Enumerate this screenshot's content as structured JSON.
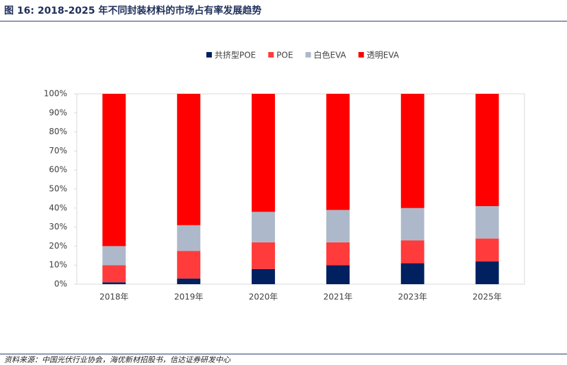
{
  "chart_data": {
    "type": "stacked_bar",
    "title": "图 16:  2018-2025 年不同封装材料的市场占有率发展趋势",
    "source": "资料来源：中国光伏行业协会，海优新材招股书，信达证券研发中心",
    "categories": [
      "2018年",
      "2019年",
      "2020年",
      "2021年",
      "2023年",
      "2025年"
    ],
    "series": [
      {
        "name": "共挤型POE",
        "color": "#002060",
        "values": [
          1,
          3,
          8,
          10,
          11,
          12
        ]
      },
      {
        "name": "POE",
        "color": "#ff3b3b",
        "values": [
          9,
          14.5,
          14,
          12,
          12,
          12
        ]
      },
      {
        "name": "白色EVA",
        "color": "#adb9ca",
        "values": [
          10,
          13.5,
          16,
          17,
          17,
          17
        ]
      },
      {
        "name": "透明EVA",
        "color": "#ff0000",
        "values": [
          80,
          69,
          62,
          61,
          60,
          59
        ]
      }
    ],
    "ylim": [
      0,
      100
    ],
    "yticks": [
      {
        "value": 0,
        "label": "0%"
      },
      {
        "value": 10,
        "label": "10%"
      },
      {
        "value": 20,
        "label": "20%"
      },
      {
        "value": 30,
        "label": "30%"
      },
      {
        "value": 40,
        "label": "40%"
      },
      {
        "value": 50,
        "label": "50%"
      },
      {
        "value": 60,
        "label": "60%"
      },
      {
        "value": 70,
        "label": "70%"
      },
      {
        "value": 80,
        "label": "80%"
      },
      {
        "value": 90,
        "label": "90%"
      },
      {
        "value": 100,
        "label": "100%"
      }
    ],
    "legend": "top"
  }
}
